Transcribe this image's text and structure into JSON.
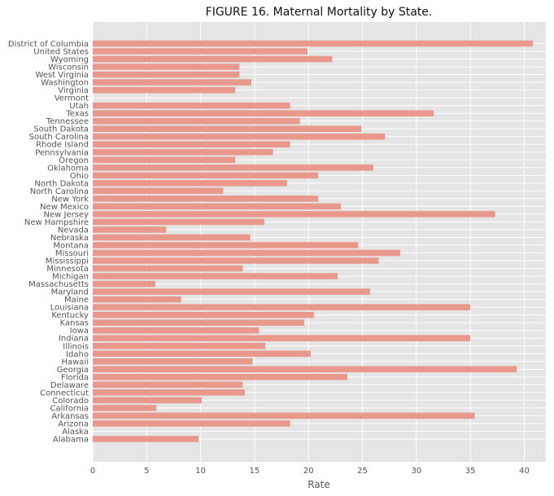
{
  "chart_data": {
    "type": "bar",
    "orientation": "horizontal",
    "title": "FIGURE 16. Maternal Mortality by State.",
    "xlabel": "Rate",
    "ylabel": "",
    "xlim": [
      0,
      42
    ],
    "xticks": [
      0,
      5,
      10,
      15,
      20,
      25,
      30,
      35,
      40
    ],
    "grid": true,
    "bar_color": "#e8998b",
    "background_color": "#e5e5e5",
    "categories": [
      "Alabama",
      "Alaska",
      "Arizona",
      "Arkansas",
      "California",
      "Colorado",
      "Connecticut",
      "Delaware",
      "Florida",
      "Georgia",
      "Hawaii",
      "Idaho",
      "Illinois",
      "Indiana",
      "Iowa",
      "Kansas",
      "Kentucky",
      "Louisiana",
      "Maine",
      "Maryland",
      "Massachusetts",
      "Michigan",
      "Minnesota",
      "Mississippi",
      "Missouri",
      "Montana",
      "Nebraska",
      "Nevada",
      "New Hampshire",
      "New Jersey",
      "New Mexico",
      "New York",
      "North Carolina",
      "North Dakota",
      "Ohio",
      "Oklahoma",
      "Oregon",
      "Pennsylvania",
      "Rhode Island",
      "South Carolina",
      "South Dakota",
      "Tennessee",
      "Texas",
      "Utah",
      "Vermont",
      "Virginia",
      "Washington",
      "West Virginia",
      "Wisconsin",
      "Wyoming",
      "United States",
      "District of Columbia"
    ],
    "values": [
      9.8,
      0,
      18.3,
      35.4,
      5.9,
      10.1,
      14.1,
      13.9,
      23.6,
      39.3,
      14.8,
      20.2,
      16.0,
      35.0,
      15.4,
      19.6,
      20.5,
      35.0,
      8.2,
      25.7,
      5.8,
      22.7,
      13.9,
      26.5,
      28.5,
      24.6,
      14.6,
      6.8,
      15.9,
      37.3,
      23.0,
      20.9,
      12.1,
      18.0,
      20.9,
      26.0,
      13.2,
      16.7,
      18.3,
      27.1,
      24.9,
      19.2,
      31.6,
      18.3,
      0,
      13.2,
      14.7,
      13.6,
      13.6,
      22.2,
      19.9,
      40.8
    ]
  }
}
